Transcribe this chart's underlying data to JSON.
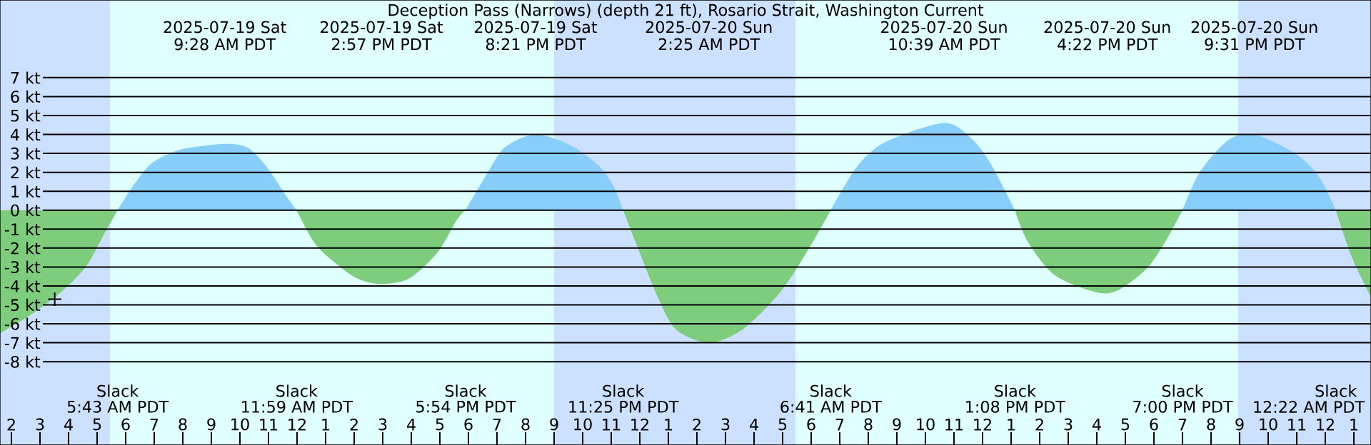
{
  "chart_data": {
    "type": "area",
    "title": "Deception Pass (Narrows) (depth 21 ft), Rosario Strait, Washington Current",
    "x": [
      "2025-07-19T01:36",
      "2025-07-19T02:36",
      "2025-07-19T03:36",
      "2025-07-19T04:36",
      "2025-07-19T05:16",
      "2025-07-19T05:43",
      "2025-07-19T06:16",
      "2025-07-19T06:56",
      "2025-07-19T07:56",
      "2025-07-19T09:28",
      "2025-07-19T10:16",
      "2025-07-19T10:56",
      "2025-07-19T11:36",
      "2025-07-19T11:59",
      "2025-07-19T12:36",
      "2025-07-19T13:16",
      "2025-07-19T14:06",
      "2025-07-19T14:57",
      "2025-07-19T15:56",
      "2025-07-19T16:56",
      "2025-07-19T17:36",
      "2025-07-19T17:54",
      "2025-07-19T18:36",
      "2025-07-19T19:16",
      "2025-07-19T20:21",
      "2025-07-19T21:36",
      "2025-07-19T22:36",
      "2025-07-19T23:06",
      "2025-07-19T23:25",
      "2025-07-19T23:56",
      "2025-07-20T00:36",
      "2025-07-20T01:16",
      "2025-07-20T02:25",
      "2025-07-20T03:36",
      "2025-07-20T04:56",
      "2025-07-20T05:56",
      "2025-07-20T06:41",
      "2025-07-20T07:36",
      "2025-07-20T08:36",
      "2025-07-20T10:39",
      "2025-07-20T11:36",
      "2025-07-20T12:16",
      "2025-07-20T13:08",
      "2025-07-20T13:36",
      "2025-07-20T14:36",
      "2025-07-20T16:22",
      "2025-07-20T17:36",
      "2025-07-20T18:16",
      "2025-07-20T19:00",
      "2025-07-20T19:36",
      "2025-07-20T20:36",
      "2025-07-20T21:31",
      "2025-07-20T22:56",
      "2025-07-20T23:46",
      "2025-07-21T00:22",
      "2025-07-21T00:56",
      "2025-07-21T01:36"
    ],
    "series": [
      {
        "color": "#87cefa",
        "values": [
          null,
          null,
          null,
          null,
          null,
          0,
          1.3,
          2.5,
          3.2,
          3.5,
          3.3,
          2.3,
          0.8,
          0,
          null,
          null,
          null,
          null,
          null,
          null,
          null,
          0,
          1.8,
          3.3,
          4.0,
          3.4,
          2.3,
          1.2,
          0,
          null,
          null,
          null,
          null,
          null,
          null,
          null,
          0,
          2.3,
          3.6,
          4.6,
          3.8,
          2.5,
          0,
          null,
          null,
          null,
          null,
          null,
          0,
          2.0,
          3.7,
          4.0,
          3.0,
          1.8,
          0,
          null,
          null
        ]
      },
      {
        "color": "#7dcd7d",
        "values": [
          -6.5,
          -5.6,
          -4.5,
          -3.0,
          -1.2,
          0,
          null,
          null,
          null,
          null,
          null,
          null,
          null,
          0,
          -1.7,
          -2.7,
          -3.6,
          -3.9,
          -3.6,
          -2.2,
          -0.5,
          0,
          null,
          null,
          null,
          null,
          null,
          null,
          0,
          -2.0,
          -4.5,
          -6.3,
          -7.0,
          -6.3,
          -4.3,
          -2.0,
          0,
          null,
          null,
          null,
          null,
          null,
          0,
          -1.7,
          -3.5,
          -4.4,
          -3.3,
          -2.0,
          0,
          null,
          null,
          null,
          null,
          null,
          0,
          -2.5,
          -4.6
        ]
      },
      {
        "type": "scatter",
        "marker": "cross",
        "color": "#000000",
        "x": [
          "2025-07-19T03:31"
        ],
        "values": [
          -4.7
        ]
      }
    ],
    "xlim": [
      "2025-07-19T01:36",
      "2025-07-21T01:36"
    ],
    "ylim": [
      -12.4,
      11.1
    ],
    "xticks": [
      {
        "value": "2025-07-19T02:00",
        "label": "2"
      },
      {
        "value": "2025-07-19T03:00",
        "label": "3"
      },
      {
        "value": "2025-07-19T04:00",
        "label": "4"
      },
      {
        "value": "2025-07-19T05:00",
        "label": "5"
      },
      {
        "value": "2025-07-19T06:00",
        "label": "6"
      },
      {
        "value": "2025-07-19T07:00",
        "label": "7"
      },
      {
        "value": "2025-07-19T08:00",
        "label": "8"
      },
      {
        "value": "2025-07-19T09:00",
        "label": "9"
      },
      {
        "value": "2025-07-19T10:00",
        "label": "10"
      },
      {
        "value": "2025-07-19T11:00",
        "label": "11"
      },
      {
        "value": "2025-07-19T12:00",
        "label": "12"
      },
      {
        "value": "2025-07-19T13:00",
        "label": "1"
      },
      {
        "value": "2025-07-19T14:00",
        "label": "2"
      },
      {
        "value": "2025-07-19T15:00",
        "label": "3"
      },
      {
        "value": "2025-07-19T16:00",
        "label": "4"
      },
      {
        "value": "2025-07-19T17:00",
        "label": "5"
      },
      {
        "value": "2025-07-19T18:00",
        "label": "6"
      },
      {
        "value": "2025-07-19T19:00",
        "label": "7"
      },
      {
        "value": "2025-07-19T20:00",
        "label": "8"
      },
      {
        "value": "2025-07-19T21:00",
        "label": "9"
      },
      {
        "value": "2025-07-19T22:00",
        "label": "10"
      },
      {
        "value": "2025-07-19T23:00",
        "label": "11"
      },
      {
        "value": "2025-07-20T00:00",
        "label": "12"
      },
      {
        "value": "2025-07-20T01:00",
        "label": "1"
      },
      {
        "value": "2025-07-20T02:00",
        "label": "2"
      },
      {
        "value": "2025-07-20T03:00",
        "label": "3"
      },
      {
        "value": "2025-07-20T04:00",
        "label": "4"
      },
      {
        "value": "2025-07-20T05:00",
        "label": "5"
      },
      {
        "value": "2025-07-20T06:00",
        "label": "6"
      },
      {
        "value": "2025-07-20T07:00",
        "label": "7"
      },
      {
        "value": "2025-07-20T08:00",
        "label": "8"
      },
      {
        "value": "2025-07-20T09:00",
        "label": "9"
      },
      {
        "value": "2025-07-20T10:00",
        "label": "10"
      },
      {
        "value": "2025-07-20T11:00",
        "label": "11"
      },
      {
        "value": "2025-07-20T12:00",
        "label": "12"
      },
      {
        "value": "2025-07-20T13:00",
        "label": "1"
      },
      {
        "value": "2025-07-20T14:00",
        "label": "2"
      },
      {
        "value": "2025-07-20T15:00",
        "label": "3"
      },
      {
        "value": "2025-07-20T16:00",
        "label": "4"
      },
      {
        "value": "2025-07-20T17:00",
        "label": "5"
      },
      {
        "value": "2025-07-20T18:00",
        "label": "6"
      },
      {
        "value": "2025-07-20T19:00",
        "label": "7"
      },
      {
        "value": "2025-07-20T20:00",
        "label": "8"
      },
      {
        "value": "2025-07-20T21:00",
        "label": "9"
      },
      {
        "value": "2025-07-20T22:00",
        "label": "10"
      },
      {
        "value": "2025-07-20T23:00",
        "label": "11"
      },
      {
        "value": "2025-07-21T00:00",
        "label": "12"
      },
      {
        "value": "2025-07-21T01:00",
        "label": "1"
      }
    ],
    "yticks": [
      {
        "value": -8,
        "label": "-8 kt"
      },
      {
        "value": -7,
        "label": "-7 kt"
      },
      {
        "value": -6,
        "label": "-6 kt"
      },
      {
        "value": -5,
        "label": "-5 kt"
      },
      {
        "value": -4,
        "label": "-4 kt"
      },
      {
        "value": -3,
        "label": "-3 kt"
      },
      {
        "value": -2,
        "label": "-2 kt"
      },
      {
        "value": -1,
        "label": "-1 kt"
      },
      {
        "value": 0,
        "label": "0 kt"
      },
      {
        "value": 1,
        "label": "1 kt"
      },
      {
        "value": 2,
        "label": "2 kt"
      },
      {
        "value": 3,
        "label": "3 kt"
      },
      {
        "value": 4,
        "label": "4 kt"
      },
      {
        "value": 5,
        "label": "5 kt"
      },
      {
        "value": 6,
        "label": "6 kt"
      },
      {
        "value": 7,
        "label": "7 kt"
      }
    ],
    "grid": "y",
    "bands": [
      {
        "axis": "x",
        "from": "2025-07-19T01:36",
        "to": "2025-07-19T05:27",
        "color": "#cce0ff"
      },
      {
        "axis": "x",
        "from": "2025-07-19T05:27",
        "to": "2025-07-19T21:00",
        "color": "#e0ffff"
      },
      {
        "axis": "x",
        "from": "2025-07-19T21:00",
        "to": "2025-07-20T05:27",
        "color": "#cce0ff"
      },
      {
        "axis": "x",
        "from": "2025-07-20T05:27",
        "to": "2025-07-20T20:57",
        "color": "#e0ffff"
      },
      {
        "axis": "x",
        "from": "2025-07-20T20:57",
        "to": "2025-07-21T01:36",
        "color": "#cce0ff"
      }
    ],
    "annotations": [
      "2025-07-19 Sat",
      "9:28 AM PDT",
      "2025-07-19 Sat",
      "2:57 PM PDT",
      "2025-07-19 Sat",
      "8:21 PM PDT",
      "2025-07-20 Sun",
      "2:25 AM PDT",
      "2025-07-20 Sun",
      "10:39 AM PDT",
      "2025-07-20 Sun",
      "4:22 PM PDT",
      "2025-07-20 Sun",
      "9:31 PM PDT",
      "Slack",
      "5:43 AM PDT",
      "Slack",
      "11:59 AM PDT",
      "Slack",
      "5:54 PM PDT",
      "Slack",
      "11:25 PM PDT",
      "Slack",
      "6:41 AM PDT",
      "Slack",
      "1:08 PM PDT",
      "Slack",
      "7:00 PM PDT",
      "Slack",
      "12:22 AM PDT"
    ]
  }
}
